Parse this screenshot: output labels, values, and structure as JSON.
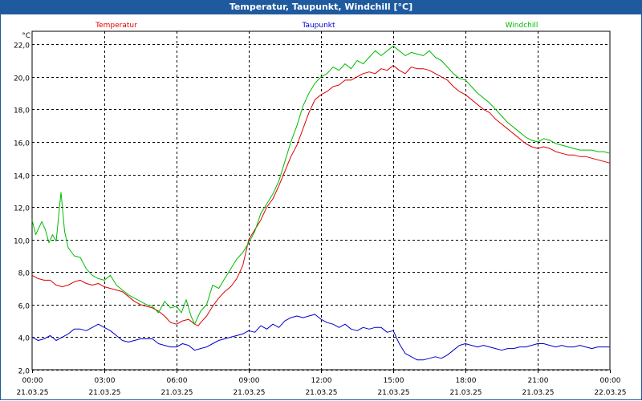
{
  "window": {
    "title": "Temperatur, Taupunkt, Windchill [°C]"
  },
  "chart_data": {
    "type": "line",
    "unit_label": "°C",
    "ylim": [
      2.0,
      22.8
    ],
    "y_ticks": [
      "2,0",
      "4,0",
      "6,0",
      "8,0",
      "10,0",
      "12,0",
      "14,0",
      "16,0",
      "18,0",
      "20,0",
      "22,0"
    ],
    "y_tick_values": [
      2,
      4,
      6,
      8,
      10,
      12,
      14,
      16,
      18,
      20,
      22
    ],
    "x_range": [
      0,
      24
    ],
    "x_ticks": [
      {
        "x": 0,
        "time": "00:00",
        "date": "21.03.25"
      },
      {
        "x": 3,
        "time": "03:00",
        "date": "21.03.25"
      },
      {
        "x": 6,
        "time": "06:00",
        "date": "21.03.25"
      },
      {
        "x": 9,
        "time": "09:00",
        "date": "21.03.25"
      },
      {
        "x": 12,
        "time": "12:00",
        "date": "21.03.25"
      },
      {
        "x": 15,
        "time": "15:00",
        "date": "21.03.25"
      },
      {
        "x": 18,
        "time": "18:00",
        "date": "21.03.25"
      },
      {
        "x": 21,
        "time": "21:00",
        "date": "21.03.25"
      },
      {
        "x": 24,
        "time": "00:00",
        "date": "22.03.25"
      }
    ],
    "grid": true,
    "legend_position": "top",
    "series": [
      {
        "name": "Temperatur",
        "color": "#dd0000",
        "points": [
          [
            0,
            7.8
          ],
          [
            0.25,
            7.6
          ],
          [
            0.5,
            7.5
          ],
          [
            0.75,
            7.5
          ],
          [
            1,
            7.2
          ],
          [
            1.25,
            7.1
          ],
          [
            1.5,
            7.2
          ],
          [
            1.75,
            7.4
          ],
          [
            2,
            7.5
          ],
          [
            2.25,
            7.3
          ],
          [
            2.5,
            7.2
          ],
          [
            2.75,
            7.3
          ],
          [
            3,
            7.1
          ],
          [
            3.25,
            7.0
          ],
          [
            3.5,
            6.9
          ],
          [
            3.75,
            6.8
          ],
          [
            4,
            6.5
          ],
          [
            4.25,
            6.2
          ],
          [
            4.5,
            6.0
          ],
          [
            4.75,
            5.9
          ],
          [
            5,
            5.8
          ],
          [
            5.25,
            5.6
          ],
          [
            5.5,
            5.3
          ],
          [
            5.75,
            4.9
          ],
          [
            6,
            4.8
          ],
          [
            6.25,
            5.0
          ],
          [
            6.5,
            5.1
          ],
          [
            6.75,
            4.8
          ],
          [
            6.9,
            4.7
          ],
          [
            7,
            4.9
          ],
          [
            7.25,
            5.3
          ],
          [
            7.5,
            5.9
          ],
          [
            7.75,
            6.4
          ],
          [
            8,
            6.8
          ],
          [
            8.25,
            7.1
          ],
          [
            8.5,
            7.6
          ],
          [
            8.75,
            8.4
          ],
          [
            9,
            10.0
          ],
          [
            9.25,
            10.6
          ],
          [
            9.5,
            11.2
          ],
          [
            9.75,
            12.0
          ],
          [
            10,
            12.5
          ],
          [
            10.25,
            13.3
          ],
          [
            10.5,
            14.2
          ],
          [
            10.75,
            15.1
          ],
          [
            11,
            15.8
          ],
          [
            11.25,
            16.8
          ],
          [
            11.5,
            17.8
          ],
          [
            11.75,
            18.6
          ],
          [
            12,
            18.9
          ],
          [
            12.25,
            19.1
          ],
          [
            12.5,
            19.4
          ],
          [
            12.75,
            19.5
          ],
          [
            13,
            19.8
          ],
          [
            13.25,
            19.8
          ],
          [
            13.5,
            20.0
          ],
          [
            13.75,
            20.2
          ],
          [
            14,
            20.3
          ],
          [
            14.25,
            20.2
          ],
          [
            14.5,
            20.5
          ],
          [
            14.75,
            20.4
          ],
          [
            15,
            20.7
          ],
          [
            15.25,
            20.4
          ],
          [
            15.5,
            20.2
          ],
          [
            15.75,
            20.6
          ],
          [
            16,
            20.5
          ],
          [
            16.25,
            20.5
          ],
          [
            16.5,
            20.4
          ],
          [
            16.75,
            20.2
          ],
          [
            17,
            20.0
          ],
          [
            17.25,
            19.8
          ],
          [
            17.5,
            19.4
          ],
          [
            17.75,
            19.1
          ],
          [
            18,
            18.9
          ],
          [
            18.25,
            18.6
          ],
          [
            18.5,
            18.3
          ],
          [
            18.75,
            18.0
          ],
          [
            19,
            17.8
          ],
          [
            19.25,
            17.4
          ],
          [
            19.5,
            17.1
          ],
          [
            19.75,
            16.8
          ],
          [
            20,
            16.5
          ],
          [
            20.25,
            16.2
          ],
          [
            20.5,
            15.9
          ],
          [
            20.75,
            15.7
          ],
          [
            21,
            15.6
          ],
          [
            21.25,
            15.7
          ],
          [
            21.5,
            15.6
          ],
          [
            21.75,
            15.4
          ],
          [
            22,
            15.3
          ],
          [
            22.25,
            15.2
          ],
          [
            22.5,
            15.2
          ],
          [
            22.75,
            15.1
          ],
          [
            23,
            15.1
          ],
          [
            23.25,
            15.0
          ],
          [
            23.5,
            14.9
          ],
          [
            23.75,
            14.8
          ],
          [
            24,
            14.7
          ]
        ]
      },
      {
        "name": "Taupunkt",
        "color": "#0000cc",
        "points": [
          [
            0,
            4.0
          ],
          [
            0.25,
            3.8
          ],
          [
            0.5,
            3.9
          ],
          [
            0.75,
            4.1
          ],
          [
            1,
            3.8
          ],
          [
            1.25,
            4.0
          ],
          [
            1.5,
            4.2
          ],
          [
            1.75,
            4.5
          ],
          [
            2,
            4.5
          ],
          [
            2.25,
            4.4
          ],
          [
            2.5,
            4.6
          ],
          [
            2.75,
            4.8
          ],
          [
            3,
            4.6
          ],
          [
            3.25,
            4.4
          ],
          [
            3.5,
            4.1
          ],
          [
            3.75,
            3.8
          ],
          [
            4,
            3.7
          ],
          [
            4.25,
            3.8
          ],
          [
            4.5,
            3.9
          ],
          [
            4.75,
            3.9
          ],
          [
            5,
            3.9
          ],
          [
            5.25,
            3.6
          ],
          [
            5.5,
            3.5
          ],
          [
            5.75,
            3.4
          ],
          [
            6,
            3.4
          ],
          [
            6.25,
            3.6
          ],
          [
            6.5,
            3.5
          ],
          [
            6.75,
            3.2
          ],
          [
            7,
            3.3
          ],
          [
            7.25,
            3.4
          ],
          [
            7.5,
            3.6
          ],
          [
            7.75,
            3.8
          ],
          [
            8,
            3.9
          ],
          [
            8.25,
            4.0
          ],
          [
            8.5,
            4.1
          ],
          [
            8.75,
            4.2
          ],
          [
            9,
            4.4
          ],
          [
            9.25,
            4.3
          ],
          [
            9.5,
            4.7
          ],
          [
            9.75,
            4.5
          ],
          [
            10,
            4.8
          ],
          [
            10.25,
            4.6
          ],
          [
            10.5,
            5.0
          ],
          [
            10.75,
            5.2
          ],
          [
            11,
            5.3
          ],
          [
            11.25,
            5.2
          ],
          [
            11.5,
            5.3
          ],
          [
            11.75,
            5.4
          ],
          [
            12,
            5.1
          ],
          [
            12.25,
            4.9
          ],
          [
            12.5,
            4.8
          ],
          [
            12.75,
            4.6
          ],
          [
            13,
            4.8
          ],
          [
            13.25,
            4.5
          ],
          [
            13.5,
            4.4
          ],
          [
            13.75,
            4.6
          ],
          [
            14,
            4.5
          ],
          [
            14.25,
            4.6
          ],
          [
            14.5,
            4.6
          ],
          [
            14.75,
            4.3
          ],
          [
            15,
            4.4
          ],
          [
            15.25,
            3.6
          ],
          [
            15.5,
            3.0
          ],
          [
            15.75,
            2.8
          ],
          [
            16,
            2.6
          ],
          [
            16.25,
            2.6
          ],
          [
            16.5,
            2.7
          ],
          [
            16.75,
            2.8
          ],
          [
            17,
            2.7
          ],
          [
            17.25,
            2.9
          ],
          [
            17.5,
            3.2
          ],
          [
            17.75,
            3.5
          ],
          [
            18,
            3.6
          ],
          [
            18.25,
            3.5
          ],
          [
            18.5,
            3.4
          ],
          [
            18.75,
            3.5
          ],
          [
            19,
            3.4
          ],
          [
            19.25,
            3.3
          ],
          [
            19.5,
            3.2
          ],
          [
            19.75,
            3.3
          ],
          [
            20,
            3.3
          ],
          [
            20.25,
            3.4
          ],
          [
            20.5,
            3.4
          ],
          [
            20.75,
            3.5
          ],
          [
            21,
            3.6
          ],
          [
            21.25,
            3.6
          ],
          [
            21.5,
            3.5
          ],
          [
            21.75,
            3.4
          ],
          [
            22,
            3.5
          ],
          [
            22.25,
            3.4
          ],
          [
            22.5,
            3.4
          ],
          [
            22.75,
            3.5
          ],
          [
            23,
            3.4
          ],
          [
            23.25,
            3.3
          ],
          [
            23.5,
            3.4
          ],
          [
            23.75,
            3.4
          ],
          [
            24,
            3.4
          ]
        ]
      },
      {
        "name": "Windchill",
        "color": "#00bb00",
        "points": [
          [
            0,
            11.2
          ],
          [
            0.15,
            10.3
          ],
          [
            0.4,
            11.1
          ],
          [
            0.55,
            10.6
          ],
          [
            0.7,
            9.8
          ],
          [
            0.85,
            10.3
          ],
          [
            1,
            9.9
          ],
          [
            1.2,
            12.9
          ],
          [
            1.35,
            10.5
          ],
          [
            1.5,
            9.5
          ],
          [
            1.75,
            9.0
          ],
          [
            2,
            8.9
          ],
          [
            2.25,
            8.2
          ],
          [
            2.5,
            7.8
          ],
          [
            2.75,
            7.6
          ],
          [
            3,
            7.5
          ],
          [
            3.25,
            7.8
          ],
          [
            3.5,
            7.2
          ],
          [
            3.75,
            6.9
          ],
          [
            4,
            6.6
          ],
          [
            4.25,
            6.4
          ],
          [
            4.5,
            6.2
          ],
          [
            4.75,
            6.0
          ],
          [
            5,
            5.9
          ],
          [
            5.25,
            5.5
          ],
          [
            5.5,
            6.2
          ],
          [
            5.75,
            5.8
          ],
          [
            6,
            5.9
          ],
          [
            6.2,
            5.5
          ],
          [
            6.4,
            6.3
          ],
          [
            6.6,
            5.3
          ],
          [
            6.75,
            4.8
          ],
          [
            7,
            5.6
          ],
          [
            7.25,
            6.0
          ],
          [
            7.5,
            7.2
          ],
          [
            7.75,
            7.0
          ],
          [
            8,
            7.6
          ],
          [
            8.25,
            8.2
          ],
          [
            8.5,
            8.8
          ],
          [
            8.75,
            9.2
          ],
          [
            9,
            9.8
          ],
          [
            9.25,
            10.5
          ],
          [
            9.5,
            11.6
          ],
          [
            9.75,
            12.2
          ],
          [
            10,
            12.8
          ],
          [
            10.25,
            13.6
          ],
          [
            10.5,
            14.8
          ],
          [
            10.75,
            16.0
          ],
          [
            11,
            17.0
          ],
          [
            11.25,
            18.2
          ],
          [
            11.5,
            19.0
          ],
          [
            11.75,
            19.6
          ],
          [
            12,
            20.0
          ],
          [
            12.25,
            20.2
          ],
          [
            12.5,
            20.6
          ],
          [
            12.75,
            20.4
          ],
          [
            13,
            20.8
          ],
          [
            13.25,
            20.5
          ],
          [
            13.5,
            21.0
          ],
          [
            13.75,
            20.8
          ],
          [
            14,
            21.2
          ],
          [
            14.25,
            21.6
          ],
          [
            14.5,
            21.3
          ],
          [
            14.75,
            21.6
          ],
          [
            15,
            21.9
          ],
          [
            15.25,
            21.6
          ],
          [
            15.5,
            21.3
          ],
          [
            15.75,
            21.5
          ],
          [
            16,
            21.4
          ],
          [
            16.25,
            21.3
          ],
          [
            16.5,
            21.6
          ],
          [
            16.75,
            21.2
          ],
          [
            17,
            21.0
          ],
          [
            17.25,
            20.6
          ],
          [
            17.5,
            20.2
          ],
          [
            17.75,
            19.9
          ],
          [
            18,
            19.8
          ],
          [
            18.25,
            19.4
          ],
          [
            18.5,
            19.0
          ],
          [
            18.75,
            18.7
          ],
          [
            19,
            18.4
          ],
          [
            19.25,
            18.0
          ],
          [
            19.5,
            17.6
          ],
          [
            19.75,
            17.2
          ],
          [
            20,
            16.9
          ],
          [
            20.25,
            16.6
          ],
          [
            20.5,
            16.3
          ],
          [
            20.75,
            16.1
          ],
          [
            21,
            16.0
          ],
          [
            21.25,
            16.2
          ],
          [
            21.5,
            16.1
          ],
          [
            21.75,
            15.9
          ],
          [
            22,
            15.8
          ],
          [
            22.25,
            15.7
          ],
          [
            22.5,
            15.6
          ],
          [
            22.75,
            15.5
          ],
          [
            23,
            15.5
          ],
          [
            23.25,
            15.5
          ],
          [
            23.5,
            15.4
          ],
          [
            23.75,
            15.4
          ],
          [
            24,
            15.3
          ]
        ]
      }
    ]
  }
}
